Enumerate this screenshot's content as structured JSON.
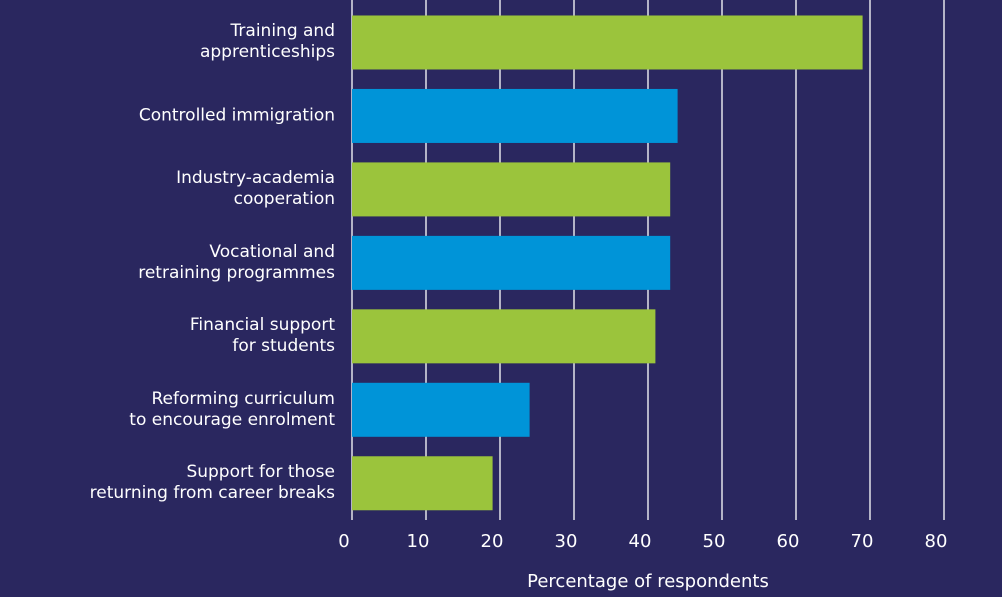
{
  "chart_data": {
    "type": "barh",
    "categories": [
      "Training and\napprenticeships",
      "Controlled immigration",
      "Industry-academia\ncooperation",
      "Vocational and\nretraining programmes",
      "Financial support\nfor students",
      "Reforming curriculum\nto encourage enrolment",
      "Support for those\nreturning from career breaks"
    ],
    "values": [
      69,
      44,
      43,
      43,
      41,
      24,
      19
    ],
    "colors": [
      "#9bc43c",
      "#0094d8",
      "#9bc43c",
      "#0094d8",
      "#9bc43c",
      "#0094d8",
      "#9bc43c"
    ],
    "xlim": [
      0,
      80
    ],
    "xticks": [
      0,
      10,
      20,
      30,
      40,
      50,
      60,
      70,
      80
    ],
    "grid": true,
    "xlabel": "Percentage of respondents"
  }
}
